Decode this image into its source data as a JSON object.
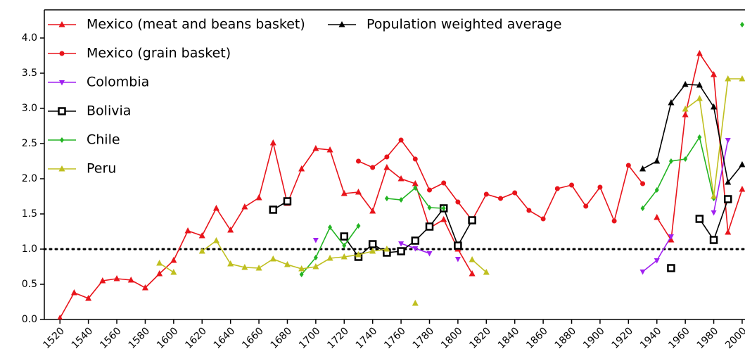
{
  "chart_data": {
    "type": "line",
    "x": [
      1520,
      1530,
      1540,
      1550,
      1560,
      1570,
      1580,
      1590,
      1600,
      1610,
      1620,
      1630,
      1640,
      1650,
      1660,
      1670,
      1680,
      1690,
      1700,
      1710,
      1720,
      1730,
      1740,
      1750,
      1760,
      1770,
      1780,
      1790,
      1800,
      1810,
      1820,
      1830,
      1840,
      1850,
      1860,
      1870,
      1880,
      1890,
      1900,
      1910,
      1920,
      1930,
      1940,
      1950,
      1960,
      1970,
      1980,
      1990,
      2000
    ],
    "series": [
      {
        "name": "Mexico (meat and beans basket)",
        "color": "#e8141b",
        "marker": "triangle-up",
        "values": [
          0.02,
          0.38,
          0.3,
          0.55,
          0.58,
          0.56,
          0.45,
          0.65,
          0.84,
          1.26,
          1.19,
          1.58,
          1.27,
          1.6,
          1.73,
          2.51,
          1.65,
          2.14,
          2.43,
          2.41,
          1.79,
          1.81,
          1.54,
          2.16,
          2.0,
          1.93,
          1.3,
          1.42,
          1.0,
          0.65,
          null,
          null,
          null,
          null,
          null,
          null,
          null,
          null,
          null,
          null,
          null,
          null,
          1.45,
          1.13,
          2.91,
          3.78,
          3.48,
          1.24,
          1.85
        ]
      },
      {
        "name": "Mexico (grain basket)",
        "color": "#e8141b",
        "marker": "circle",
        "values": [
          null,
          null,
          null,
          null,
          null,
          null,
          null,
          null,
          null,
          null,
          null,
          null,
          null,
          null,
          null,
          null,
          null,
          null,
          null,
          null,
          null,
          2.25,
          2.16,
          2.31,
          2.55,
          2.28,
          1.84,
          1.94,
          1.67,
          1.41,
          1.78,
          1.72,
          1.8,
          1.55,
          1.43,
          1.86,
          1.91,
          1.61,
          1.88,
          1.4,
          2.19,
          1.93,
          null,
          null,
          null,
          null,
          null,
          null,
          null
        ]
      },
      {
        "name": "Colombia",
        "color": "#a020f0",
        "marker": "triangle-down",
        "values": [
          null,
          null,
          null,
          null,
          null,
          null,
          null,
          null,
          null,
          null,
          null,
          null,
          null,
          null,
          null,
          null,
          null,
          null,
          1.13,
          null,
          null,
          null,
          null,
          null,
          1.08,
          1.01,
          0.94,
          null,
          0.86,
          null,
          null,
          null,
          null,
          null,
          null,
          null,
          null,
          null,
          null,
          null,
          null,
          0.68,
          0.84,
          1.18,
          null,
          null,
          1.52,
          2.55,
          null
        ]
      },
      {
        "name": "Bolivia",
        "color": "#000000",
        "marker": "square",
        "values": [
          null,
          null,
          null,
          null,
          null,
          null,
          null,
          null,
          null,
          null,
          null,
          null,
          null,
          null,
          null,
          1.56,
          1.68,
          null,
          null,
          null,
          1.18,
          0.89,
          1.07,
          0.95,
          0.97,
          1.12,
          1.32,
          1.58,
          1.05,
          1.41,
          null,
          null,
          null,
          null,
          null,
          null,
          null,
          null,
          null,
          null,
          null,
          null,
          null,
          0.73,
          null,
          1.43,
          1.13,
          1.71,
          null
        ]
      },
      {
        "name": "Chile",
        "color": "#22b422",
        "marker": "diamond",
        "values": [
          null,
          null,
          null,
          null,
          null,
          null,
          null,
          null,
          null,
          null,
          null,
          null,
          null,
          null,
          null,
          null,
          null,
          0.64,
          0.88,
          1.31,
          1.05,
          1.33,
          null,
          1.72,
          1.7,
          1.87,
          1.59,
          1.58,
          null,
          null,
          null,
          null,
          null,
          null,
          null,
          null,
          null,
          null,
          null,
          null,
          null,
          1.58,
          1.84,
          2.25,
          2.28,
          2.59,
          1.72,
          null,
          4.19
        ]
      },
      {
        "name": "Peru",
        "color": "#bfbf1f",
        "marker": "triangle-up",
        "values": [
          null,
          null,
          null,
          null,
          null,
          null,
          null,
          0.8,
          0.67,
          null,
          0.97,
          1.12,
          0.79,
          0.74,
          0.73,
          0.86,
          0.78,
          0.72,
          0.75,
          0.87,
          0.89,
          0.92,
          0.97,
          1.0,
          null,
          0.23,
          null,
          null,
          null,
          0.85,
          0.67,
          null,
          null,
          null,
          null,
          null,
          null,
          null,
          null,
          null,
          null,
          null,
          null,
          null,
          2.99,
          3.14,
          1.75,
          3.42,
          3.42
        ]
      },
      {
        "name": "Population weighted average",
        "color": "#000000",
        "marker": "triangle-up",
        "values": [
          null,
          null,
          null,
          null,
          null,
          null,
          null,
          null,
          null,
          null,
          null,
          null,
          null,
          null,
          null,
          null,
          null,
          null,
          null,
          null,
          null,
          null,
          null,
          null,
          null,
          null,
          null,
          null,
          null,
          null,
          null,
          null,
          null,
          null,
          null,
          null,
          null,
          null,
          null,
          null,
          null,
          2.14,
          2.25,
          3.08,
          3.34,
          3.33,
          3.02,
          1.95,
          2.2
        ]
      }
    ],
    "xlim": [
      1509,
      2002
    ],
    "xticks": [
      1520,
      1540,
      1560,
      1580,
      1600,
      1620,
      1640,
      1660,
      1680,
      1700,
      1720,
      1740,
      1760,
      1780,
      1800,
      1820,
      1840,
      1860,
      1880,
      1900,
      1920,
      1940,
      1960,
      1980,
      2000
    ],
    "ylim": [
      0,
      4.4
    ],
    "yticks": [
      {
        "value": 0,
        "label": "0.0"
      },
      {
        "value": 0.5,
        "label": "0.5"
      },
      {
        "value": 1,
        "label": "1.0"
      },
      {
        "value": 1.5,
        "label": "1.5"
      },
      {
        "value": 2,
        "label": "2.0"
      },
      {
        "value": 2.5,
        "label": "2.5"
      },
      {
        "value": 3,
        "label": "3.0"
      },
      {
        "value": 3.5,
        "label": "3.5"
      },
      {
        "value": 4,
        "label": "4.0"
      }
    ],
    "hline": 1,
    "legend": "upper left"
  }
}
